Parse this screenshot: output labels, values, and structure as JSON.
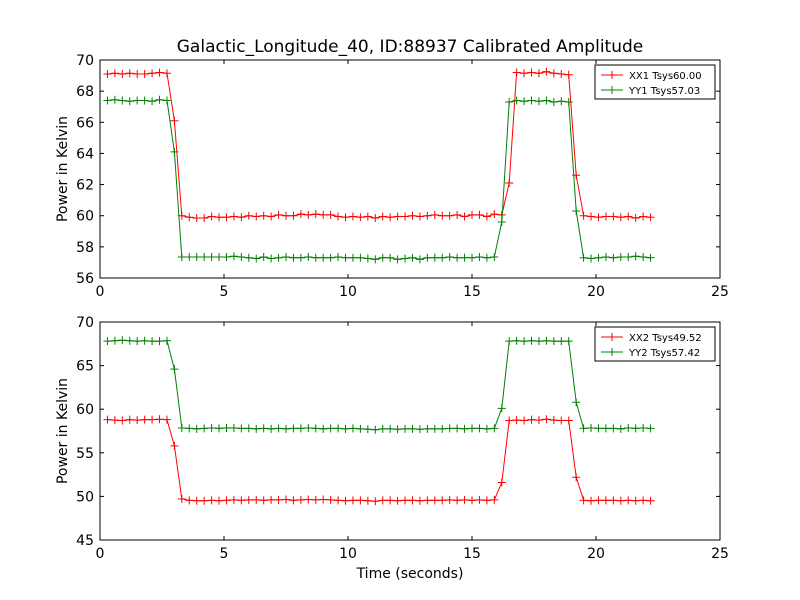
{
  "figure": {
    "title": "Galactic_Longitude_40, ID:88937 Calibrated Amplitude",
    "xlabel": "Time (seconds)"
  },
  "colors": {
    "xx": "#ff0000",
    "yy": "#008000"
  },
  "chart_data": [
    {
      "type": "line",
      "ylabel": "Power in Kelvin",
      "xlim": [
        0,
        25
      ],
      "ylim": [
        56,
        70
      ],
      "xticks": [
        "0",
        "5",
        "10",
        "15",
        "20",
        "25"
      ],
      "yticks": [
        "56",
        "58",
        "60",
        "62",
        "64",
        "66",
        "68",
        "70"
      ],
      "legend_position": "top-right",
      "grid": false,
      "series": [
        {
          "name": "XX1 Tsys60.00",
          "color": "#ff0000",
          "x": [
            0.3,
            0.6,
            0.9,
            1.2,
            1.5,
            1.8,
            2.1,
            2.4,
            2.7,
            3.0,
            3.3,
            3.6,
            3.9,
            4.2,
            4.5,
            4.8,
            5.1,
            5.4,
            5.7,
            6.0,
            6.3,
            6.6,
            6.9,
            7.2,
            7.5,
            7.8,
            8.1,
            8.4,
            8.7,
            9.0,
            9.3,
            9.6,
            9.9,
            10.2,
            10.5,
            10.8,
            11.1,
            11.4,
            11.7,
            12.0,
            12.3,
            12.6,
            12.9,
            13.2,
            13.5,
            13.8,
            14.1,
            14.4,
            14.7,
            15.0,
            15.3,
            15.6,
            15.9,
            16.2,
            16.5,
            16.8,
            17.1,
            17.4,
            17.7,
            18.0,
            18.3,
            18.6,
            18.9,
            19.2,
            19.5,
            19.8,
            20.1,
            20.4,
            20.7,
            21.0,
            21.3,
            21.6,
            21.9,
            22.2
          ],
          "y": [
            69.1,
            69.15,
            69.1,
            69.15,
            69.1,
            69.1,
            69.15,
            69.2,
            69.15,
            66.1,
            60.0,
            59.9,
            59.85,
            59.85,
            59.95,
            59.9,
            59.9,
            59.95,
            59.9,
            60.0,
            59.95,
            60.0,
            59.95,
            60.05,
            60.0,
            60.0,
            60.1,
            60.05,
            60.1,
            60.05,
            60.05,
            59.95,
            59.9,
            59.95,
            59.9,
            59.95,
            59.85,
            59.95,
            59.9,
            59.95,
            59.95,
            60.0,
            59.95,
            60.0,
            60.05,
            60.0,
            60.0,
            60.05,
            59.95,
            60.05,
            60.05,
            59.95,
            60.1,
            60.05,
            62.1,
            69.2,
            69.15,
            69.2,
            69.15,
            69.25,
            69.15,
            69.1,
            69.05,
            62.6,
            60.0,
            59.95,
            59.9,
            59.95,
            59.95,
            59.9,
            59.95,
            59.85,
            59.95,
            59.9
          ]
        },
        {
          "name": "YY1 Tsys57.03",
          "color": "#008000",
          "x": [
            0.3,
            0.6,
            0.9,
            1.2,
            1.5,
            1.8,
            2.1,
            2.4,
            2.7,
            3.0,
            3.3,
            3.6,
            3.9,
            4.2,
            4.5,
            4.8,
            5.1,
            5.4,
            5.7,
            6.0,
            6.3,
            6.6,
            6.9,
            7.2,
            7.5,
            7.8,
            8.1,
            8.4,
            8.7,
            9.0,
            9.3,
            9.6,
            9.9,
            10.2,
            10.5,
            10.8,
            11.1,
            11.4,
            11.7,
            12.0,
            12.3,
            12.6,
            12.9,
            13.2,
            13.5,
            13.8,
            14.1,
            14.4,
            14.7,
            15.0,
            15.3,
            15.6,
            15.9,
            16.2,
            16.5,
            16.8,
            17.1,
            17.4,
            17.7,
            18.0,
            18.3,
            18.6,
            18.9,
            19.2,
            19.5,
            19.8,
            20.1,
            20.4,
            20.7,
            21.0,
            21.3,
            21.6,
            21.9,
            22.2
          ],
          "y": [
            67.4,
            67.45,
            67.4,
            67.35,
            67.4,
            67.4,
            67.35,
            67.45,
            67.4,
            64.1,
            57.35,
            57.35,
            57.35,
            57.35,
            57.35,
            57.35,
            57.35,
            57.4,
            57.35,
            57.3,
            57.25,
            57.35,
            57.25,
            57.3,
            57.35,
            57.3,
            57.3,
            57.35,
            57.3,
            57.3,
            57.3,
            57.35,
            57.3,
            57.3,
            57.3,
            57.25,
            57.2,
            57.3,
            57.3,
            57.2,
            57.25,
            57.3,
            57.2,
            57.3,
            57.3,
            57.3,
            57.35,
            57.3,
            57.3,
            57.3,
            57.35,
            57.3,
            57.35,
            59.6,
            67.3,
            67.4,
            67.35,
            67.4,
            67.35,
            67.4,
            67.3,
            67.35,
            67.3,
            60.3,
            57.3,
            57.25,
            57.3,
            57.35,
            57.3,
            57.35,
            57.35,
            57.4,
            57.35,
            57.3
          ]
        }
      ]
    },
    {
      "type": "line",
      "ylabel": "Power in Kelvin",
      "xlabel": "Time (seconds)",
      "xlim": [
        0,
        25
      ],
      "ylim": [
        45,
        70
      ],
      "xticks": [
        "0",
        "5",
        "10",
        "15",
        "20",
        "25"
      ],
      "yticks": [
        "45",
        "50",
        "55",
        "60",
        "65",
        "70"
      ],
      "legend_position": "top-right",
      "grid": false,
      "series": [
        {
          "name": "XX2 Tsys49.52",
          "color": "#ff0000",
          "x": [
            0.3,
            0.6,
            0.9,
            1.2,
            1.5,
            1.8,
            2.1,
            2.4,
            2.7,
            3.0,
            3.3,
            3.6,
            3.9,
            4.2,
            4.5,
            4.8,
            5.1,
            5.4,
            5.7,
            6.0,
            6.3,
            6.6,
            6.9,
            7.2,
            7.5,
            7.8,
            8.1,
            8.4,
            8.7,
            9.0,
            9.3,
            9.6,
            9.9,
            10.2,
            10.5,
            10.8,
            11.1,
            11.4,
            11.7,
            12.0,
            12.3,
            12.6,
            12.9,
            13.2,
            13.5,
            13.8,
            14.1,
            14.4,
            14.7,
            15.0,
            15.3,
            15.6,
            15.9,
            16.2,
            16.5,
            16.8,
            17.1,
            17.4,
            17.7,
            18.0,
            18.3,
            18.6,
            18.9,
            19.2,
            19.5,
            19.8,
            20.1,
            20.4,
            20.7,
            21.0,
            21.3,
            21.6,
            21.9,
            22.2
          ],
          "y": [
            58.8,
            58.75,
            58.7,
            58.8,
            58.75,
            58.8,
            58.8,
            58.85,
            58.8,
            55.8,
            49.7,
            49.55,
            49.5,
            49.5,
            49.55,
            49.5,
            49.55,
            49.6,
            49.55,
            49.6,
            49.6,
            49.55,
            49.6,
            49.6,
            49.65,
            49.55,
            49.6,
            49.65,
            49.6,
            49.65,
            49.6,
            49.55,
            49.5,
            49.55,
            49.55,
            49.5,
            49.45,
            49.55,
            49.55,
            49.5,
            49.55,
            49.55,
            49.5,
            49.55,
            49.55,
            49.55,
            49.6,
            49.55,
            49.6,
            49.55,
            49.6,
            49.55,
            49.6,
            51.6,
            58.7,
            58.75,
            58.7,
            58.8,
            58.75,
            58.85,
            58.75,
            58.7,
            58.7,
            52.2,
            49.55,
            49.5,
            49.55,
            49.55,
            49.55,
            49.5,
            49.55,
            49.5,
            49.55,
            49.5
          ]
        },
        {
          "name": "YY2 Tsys57.42",
          "color": "#008000",
          "x": [
            0.3,
            0.6,
            0.9,
            1.2,
            1.5,
            1.8,
            2.1,
            2.4,
            2.7,
            3.0,
            3.3,
            3.6,
            3.9,
            4.2,
            4.5,
            4.8,
            5.1,
            5.4,
            5.7,
            6.0,
            6.3,
            6.6,
            6.9,
            7.2,
            7.5,
            7.8,
            8.1,
            8.4,
            8.7,
            9.0,
            9.3,
            9.6,
            9.9,
            10.2,
            10.5,
            10.8,
            11.1,
            11.4,
            11.7,
            12.0,
            12.3,
            12.6,
            12.9,
            13.2,
            13.5,
            13.8,
            14.1,
            14.4,
            14.7,
            15.0,
            15.3,
            15.6,
            15.9,
            16.2,
            16.5,
            16.8,
            17.1,
            17.4,
            17.7,
            18.0,
            18.3,
            18.6,
            18.9,
            19.2,
            19.5,
            19.8,
            20.1,
            20.4,
            20.7,
            21.0,
            21.3,
            21.6,
            21.9,
            22.2
          ],
          "y": [
            67.8,
            67.85,
            67.9,
            67.85,
            67.8,
            67.85,
            67.8,
            67.8,
            67.85,
            64.6,
            57.85,
            57.8,
            57.75,
            57.8,
            57.85,
            57.8,
            57.85,
            57.85,
            57.8,
            57.8,
            57.75,
            57.8,
            57.75,
            57.8,
            57.75,
            57.8,
            57.8,
            57.85,
            57.8,
            57.75,
            57.8,
            57.8,
            57.75,
            57.8,
            57.75,
            57.7,
            57.65,
            57.75,
            57.75,
            57.7,
            57.75,
            57.75,
            57.7,
            57.75,
            57.75,
            57.75,
            57.8,
            57.8,
            57.75,
            57.8,
            57.8,
            57.75,
            57.8,
            60.1,
            67.8,
            67.85,
            67.8,
            67.85,
            67.8,
            67.85,
            67.8,
            67.8,
            67.8,
            60.8,
            57.8,
            57.85,
            57.8,
            57.8,
            57.8,
            57.75,
            57.85,
            57.8,
            57.85,
            57.8
          ]
        }
      ]
    }
  ]
}
